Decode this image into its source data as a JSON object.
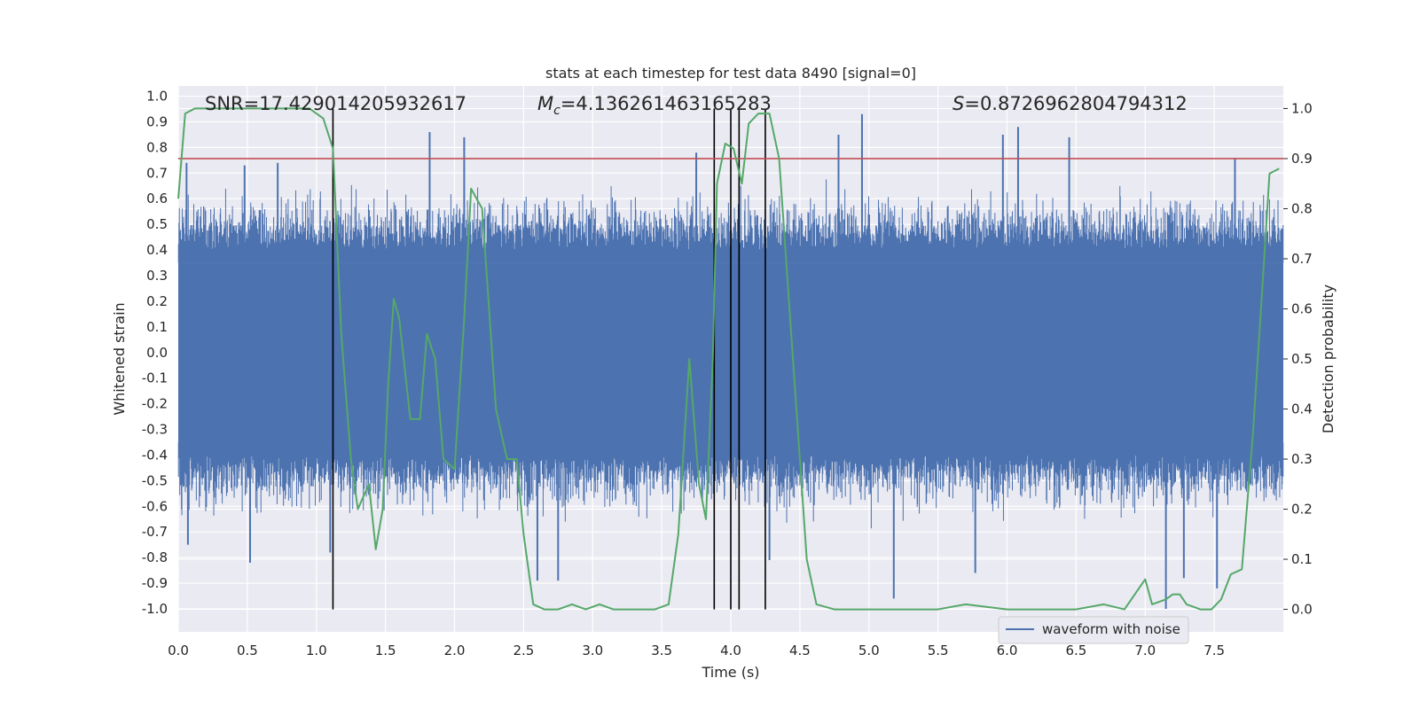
{
  "chart_data": {
    "type": "line",
    "title": "stats at each timestep for test data 8490 [signal=0]",
    "xlabel": "Time (s)",
    "ylabel": "Whitened strain",
    "y2label": "Detection probability",
    "xlim": [
      0.0,
      8.0
    ],
    "ylim": [
      -1.09,
      1.04
    ],
    "y2lim": [
      -0.045,
      1.045
    ],
    "x_ticks": [
      "0.0",
      "0.5",
      "1.0",
      "1.5",
      "2.0",
      "2.5",
      "3.0",
      "3.5",
      "4.0",
      "4.5",
      "5.0",
      "5.5",
      "6.0",
      "6.5",
      "7.0",
      "7.5"
    ],
    "y_ticks": [
      "1.0",
      "0.9",
      "0.8",
      "0.7",
      "0.6",
      "0.5",
      "0.4",
      "0.3",
      "0.2",
      "0.1",
      "0.0",
      "-0.1",
      "-0.2",
      "-0.3",
      "-0.4",
      "-0.5",
      "-0.6",
      "-0.7",
      "-0.8",
      "-0.9",
      "-1.0"
    ],
    "y2_ticks": [
      "1.0",
      "0.9",
      "0.8",
      "0.7",
      "0.6",
      "0.5",
      "0.4",
      "0.3",
      "0.2",
      "0.1",
      "0.0"
    ],
    "annotations": {
      "snr": {
        "label": "SNR",
        "value": "=17.429014205932617"
      },
      "mc": {
        "symbol": "M",
        "subscript": "c",
        "value": "=4.136261463165283"
      },
      "s": {
        "symbol": "S",
        "value": "=0.8726962804794312"
      }
    },
    "threshold": {
      "value": 0.9,
      "color": "#c44e52"
    },
    "vertical_lines_x": [
      1.12,
      3.88,
      4.0,
      4.06,
      4.25
    ],
    "vertical_line_color": "#000000",
    "waveform": {
      "name": "waveform with noise",
      "color": "#4c72b0",
      "core_range": [
        -0.35,
        0.35
      ],
      "extreme_peaks": [
        {
          "x": 0.06,
          "y": 0.74
        },
        {
          "x": 0.48,
          "y": 0.73
        },
        {
          "x": 0.72,
          "y": 0.74
        },
        {
          "x": 1.82,
          "y": 0.86
        },
        {
          "x": 2.07,
          "y": 0.84
        },
        {
          "x": 3.75,
          "y": 0.78
        },
        {
          "x": 4.95,
          "y": 0.93
        },
        {
          "x": 4.78,
          "y": 0.85
        },
        {
          "x": 5.97,
          "y": 0.85
        },
        {
          "x": 6.08,
          "y": 0.88
        },
        {
          "x": 6.45,
          "y": 0.84
        },
        {
          "x": 7.65,
          "y": 0.76
        },
        {
          "x": 0.07,
          "y": -0.75
        },
        {
          "x": 0.52,
          "y": -0.82
        },
        {
          "x": 1.1,
          "y": -0.78
        },
        {
          "x": 2.6,
          "y": -0.89
        },
        {
          "x": 2.75,
          "y": -0.89
        },
        {
          "x": 4.28,
          "y": -0.81
        },
        {
          "x": 5.18,
          "y": -0.96
        },
        {
          "x": 5.77,
          "y": -0.86
        },
        {
          "x": 7.15,
          "y": -1.0
        },
        {
          "x": 7.28,
          "y": -0.88
        },
        {
          "x": 7.52,
          "y": -0.92
        }
      ]
    },
    "probability": {
      "name": "detection probability",
      "color": "#55a868",
      "points": [
        [
          0.0,
          0.82
        ],
        [
          0.05,
          0.99
        ],
        [
          0.12,
          1.0
        ],
        [
          0.4,
          1.0
        ],
        [
          0.8,
          1.0
        ],
        [
          0.95,
          1.0
        ],
        [
          1.05,
          0.98
        ],
        [
          1.12,
          0.92
        ],
        [
          1.18,
          0.55
        ],
        [
          1.25,
          0.3
        ],
        [
          1.3,
          0.2
        ],
        [
          1.38,
          0.25
        ],
        [
          1.43,
          0.12
        ],
        [
          1.48,
          0.2
        ],
        [
          1.52,
          0.45
        ],
        [
          1.56,
          0.62
        ],
        [
          1.6,
          0.58
        ],
        [
          1.68,
          0.38
        ],
        [
          1.75,
          0.38
        ],
        [
          1.8,
          0.55
        ],
        [
          1.86,
          0.5
        ],
        [
          1.92,
          0.3
        ],
        [
          2.0,
          0.28
        ],
        [
          2.07,
          0.58
        ],
        [
          2.12,
          0.84
        ],
        [
          2.2,
          0.8
        ],
        [
          2.3,
          0.4
        ],
        [
          2.38,
          0.3
        ],
        [
          2.45,
          0.3
        ],
        [
          2.5,
          0.15
        ],
        [
          2.57,
          0.01
        ],
        [
          2.65,
          0.0
        ],
        [
          2.75,
          0.0
        ],
        [
          2.85,
          0.01
        ],
        [
          2.95,
          0.0
        ],
        [
          3.05,
          0.01
        ],
        [
          3.15,
          0.0
        ],
        [
          3.3,
          0.0
        ],
        [
          3.45,
          0.0
        ],
        [
          3.55,
          0.01
        ],
        [
          3.62,
          0.15
        ],
        [
          3.7,
          0.5
        ],
        [
          3.77,
          0.25
        ],
        [
          3.82,
          0.18
        ],
        [
          3.87,
          0.5
        ],
        [
          3.9,
          0.85
        ],
        [
          3.96,
          0.93
        ],
        [
          4.02,
          0.92
        ],
        [
          4.08,
          0.85
        ],
        [
          4.13,
          0.97
        ],
        [
          4.2,
          0.99
        ],
        [
          4.28,
          0.99
        ],
        [
          4.35,
          0.9
        ],
        [
          4.45,
          0.5
        ],
        [
          4.55,
          0.1
        ],
        [
          4.62,
          0.01
        ],
        [
          4.75,
          0.0
        ],
        [
          5.0,
          0.0
        ],
        [
          5.5,
          0.0
        ],
        [
          5.7,
          0.01
        ],
        [
          6.0,
          0.0
        ],
        [
          6.5,
          0.0
        ],
        [
          6.7,
          0.01
        ],
        [
          6.85,
          0.0
        ],
        [
          6.95,
          0.04
        ],
        [
          7.0,
          0.06
        ],
        [
          7.05,
          0.01
        ],
        [
          7.15,
          0.02
        ],
        [
          7.2,
          0.03
        ],
        [
          7.25,
          0.03
        ],
        [
          7.3,
          0.01
        ],
        [
          7.4,
          0.0
        ],
        [
          7.48,
          0.0
        ],
        [
          7.55,
          0.02
        ],
        [
          7.62,
          0.07
        ],
        [
          7.7,
          0.08
        ],
        [
          7.78,
          0.35
        ],
        [
          7.85,
          0.65
        ],
        [
          7.9,
          0.87
        ],
        [
          7.97,
          0.88
        ]
      ]
    },
    "legend": {
      "entry": "waveform with noise",
      "position": "lower-right"
    },
    "colors": {
      "plot_bg": "#eaeaf2",
      "grid": "#ffffff",
      "text": "#262626"
    }
  }
}
